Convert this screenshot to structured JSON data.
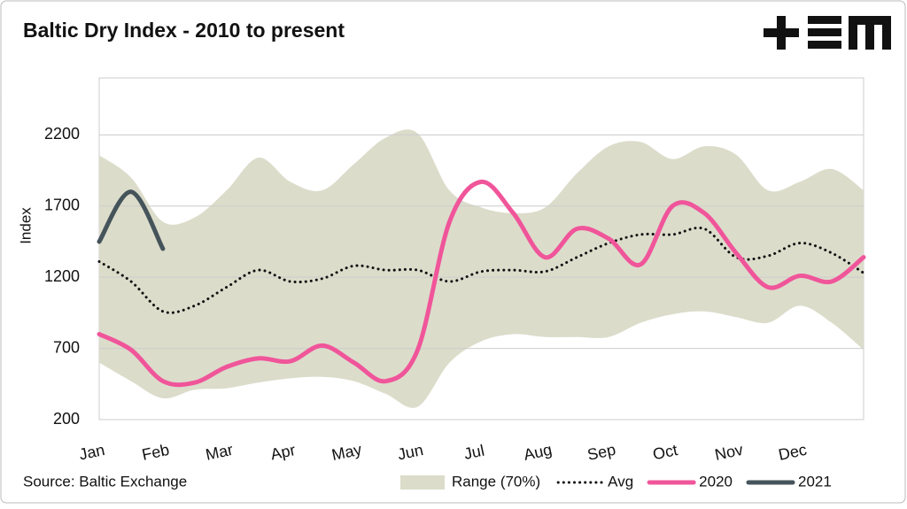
{
  "chart_data": {
    "type": "line",
    "title": "Baltic Dry Index - 2010 to present",
    "y_label": "Index",
    "source": "Source: Baltic Exchange",
    "categories": [
      "Jan",
      null,
      "Feb",
      null,
      "Mar",
      null,
      "Apr",
      null,
      "May",
      null,
      "Jun",
      null,
      "Jul",
      null,
      "Aug",
      null,
      "Sep",
      null,
      "Oct",
      null,
      "Nov",
      null,
      "Dec",
      null,
      null
    ],
    "ylim": [
      200,
      2600
    ],
    "yticks": [
      200,
      700,
      1200,
      1700,
      2200
    ],
    "grid": true,
    "range": {
      "name": "Range (70%)",
      "color": "#dcdccb",
      "upper": [
        2057,
        1900,
        1590,
        1620,
        1810,
        2040,
        1870,
        1810,
        1995,
        2180,
        2210,
        1810,
        1690,
        1650,
        1690,
        1930,
        2120,
        2150,
        2030,
        2120,
        2060,
        1810,
        1870,
        1960,
        1810
      ],
      "lower": [
        600,
        470,
        350,
        410,
        420,
        460,
        490,
        500,
        470,
        380,
        290,
        600,
        750,
        800,
        780,
        780,
        780,
        880,
        940,
        960,
        920,
        880,
        1000,
        880,
        690
      ]
    },
    "series": [
      {
        "name": "Avg",
        "color": "#111111",
        "dotted": true,
        "values": [
          1310,
          1170,
          960,
          1000,
          1130,
          1250,
          1170,
          1190,
          1280,
          1250,
          1250,
          1170,
          1240,
          1250,
          1240,
          1340,
          1440,
          1500,
          1500,
          1540,
          1340,
          1350,
          1440,
          1370,
          1230
        ]
      },
      {
        "name": "2020",
        "color": "#f0559a",
        "values": [
          800,
          690,
          470,
          460,
          570,
          630,
          610,
          720,
          600,
          470,
          690,
          1590,
          1870,
          1650,
          1340,
          1540,
          1470,
          1290,
          1700,
          1650,
          1370,
          1130,
          1210,
          1170,
          1340
        ]
      },
      {
        "name": "2021",
        "color": "#45545a",
        "values": [
          1450,
          1800,
          1400,
          null,
          null,
          null,
          null,
          null,
          null,
          null,
          null,
          null,
          null,
          null,
          null,
          null,
          null,
          null,
          null,
          null,
          null,
          null,
          null,
          null,
          null
        ]
      }
    ]
  }
}
